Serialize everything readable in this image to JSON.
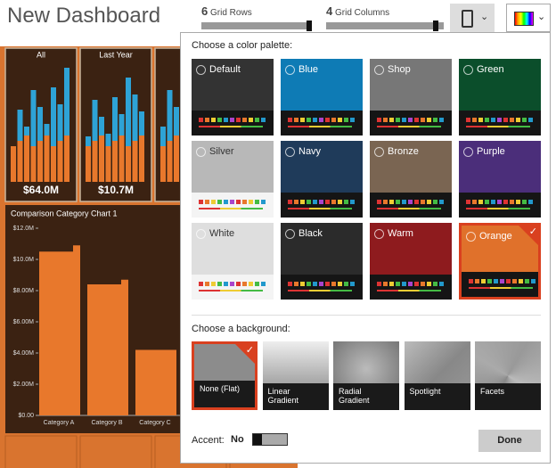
{
  "header": {
    "title": "New Dashboard",
    "grid_rows": {
      "value": "6",
      "label": "Grid Rows"
    },
    "grid_columns": {
      "value": "4",
      "label": "Grid Columns"
    }
  },
  "tiles": [
    {
      "label": "All",
      "value": "$64.0M"
    },
    {
      "label": "Last Year",
      "value": "$10.7M"
    },
    {
      "value": "$7"
    }
  ],
  "chart_data": {
    "type": "bar",
    "title": "Comparison Category Chart 1",
    "categories": [
      "Category A",
      "Category B",
      "Category C"
    ],
    "series": [
      {
        "color": "#e8782c",
        "values": [
          10500000,
          8400000,
          4200000
        ]
      },
      {
        "color": "#e8782c",
        "values": [
          10900000,
          8700000,
          4200000
        ]
      }
    ],
    "ylim": [
      0,
      12000000
    ],
    "yticks": [
      {
        "value": 0,
        "label": "$0.00"
      },
      {
        "value": 2000000,
        "label": "$2.00M"
      },
      {
        "value": 4000000,
        "label": "$4.00M"
      },
      {
        "value": 6000000,
        "label": "$6.00M"
      },
      {
        "value": 8000000,
        "label": "$8.00M"
      },
      {
        "value": 10000000,
        "label": "$10.0M"
      },
      {
        "value": 12000000,
        "label": "$12.0M"
      }
    ]
  },
  "palette_panel": {
    "heading": "Choose a color palette:",
    "palettes": [
      {
        "name": "Default",
        "color": "#333333"
      },
      {
        "name": "Blue",
        "color": "#0e7bb5"
      },
      {
        "name": "Shop",
        "color": "#777777"
      },
      {
        "name": "Green",
        "color": "#0b4e2b"
      },
      {
        "name": "Silver",
        "color": "#b8b8b8"
      },
      {
        "name": "Navy",
        "color": "#1f3b5a"
      },
      {
        "name": "Bronze",
        "color": "#7a6552"
      },
      {
        "name": "Purple",
        "color": "#4b2e7a"
      },
      {
        "name": "White",
        "color": "#dedede"
      },
      {
        "name": "Black",
        "color": "#2b2b2b"
      },
      {
        "name": "Warm",
        "color": "#8e1b1e"
      },
      {
        "name": "Orange",
        "color": "#e0712b",
        "selected": true
      }
    ]
  },
  "background_panel": {
    "heading": "Choose a background:",
    "options": [
      {
        "name": "None (Flat)",
        "selected": true
      },
      {
        "name": "Linear Gradient"
      },
      {
        "name": "Radial Gradient"
      },
      {
        "name": "Spotlight"
      },
      {
        "name": "Facets"
      }
    ]
  },
  "accent": {
    "label": "Accent:",
    "value": "No"
  },
  "done": "Done"
}
